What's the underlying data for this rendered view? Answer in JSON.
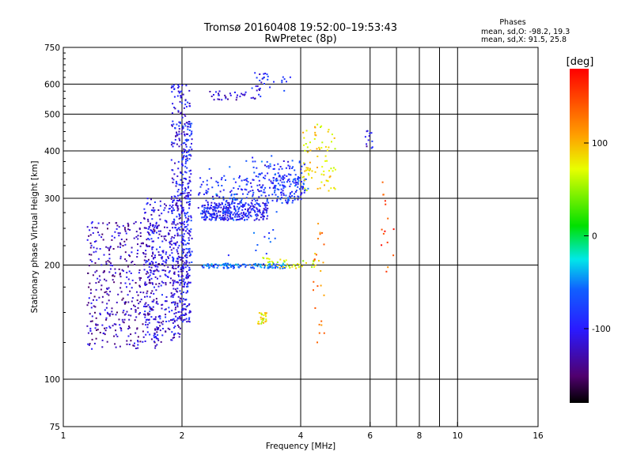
{
  "title_line1": "Tromsø 20160408 19:52:00–19:53:43",
  "title_line2": "RwPretec (8p)",
  "stats": {
    "heading": "Phases",
    "line1": "mean, sd,O: -98.2, 19.3",
    "line2": "mean, sd,X:  91.5, 25.8"
  },
  "colorbar": {
    "label": "[deg]",
    "tick_labels": [
      "100",
      "0",
      "-100"
    ],
    "tick_values": [
      100,
      0,
      -100
    ],
    "range": [
      -180,
      180
    ],
    "colormap": "rainbow (black-purple-blue-cyan-green-yellow-orange-red)"
  },
  "chart_data": {
    "type": "scatter",
    "xlabel": "Frequency [MHz]",
    "ylabel": "Stationary phase Virtual Height [km]",
    "x_scale": "log",
    "y_scale": "log",
    "xlim": [
      1,
      16
    ],
    "ylim": [
      75,
      750
    ],
    "grid": true,
    "x_ticks": [
      1,
      2,
      4,
      6,
      8,
      10,
      16
    ],
    "x_tick_labels": [
      "1",
      "2",
      "4",
      "6",
      "8",
      "10",
      "16"
    ],
    "x_grid_lines": [
      2,
      4,
      6,
      7,
      8,
      9,
      10
    ],
    "y_ticks": [
      75,
      100,
      200,
      300,
      400,
      500,
      600,
      750
    ],
    "y_tick_labels": [
      "75",
      "100",
      "200",
      "300",
      "400",
      "500",
      "600",
      "750"
    ],
    "y_grid_lines": [
      100,
      200,
      300,
      400,
      500,
      600
    ],
    "color_by": "phase [deg]",
    "series": [
      {
        "f_range": [
          1.15,
          1.75
        ],
        "h_range": [
          120,
          260
        ],
        "phase": -125,
        "count": 420
      },
      {
        "f_range": [
          1.6,
          2.02
        ],
        "h_range": [
          125,
          300
        ],
        "phase": -110,
        "count": 380
      },
      {
        "f_range": [
          1.88,
          2.1
        ],
        "h_range": [
          140,
          600
        ],
        "phase": -105,
        "count": 320
      },
      {
        "f_range": [
          2.0,
          2.12
        ],
        "h_range": [
          150,
          480
        ],
        "phase": -95,
        "count": 160
      },
      {
        "f_range": [
          2.25,
          3.3
        ],
        "h_range": [
          262,
          292
        ],
        "phase": -98,
        "count": 260
      },
      {
        "f_range": [
          2.2,
          3.2
        ],
        "h_range": [
          265,
          340
        ],
        "phase": -90,
        "count": 140
      },
      {
        "f_range": [
          3.0,
          4.1
        ],
        "h_range": [
          290,
          380
        ],
        "phase": -92,
        "count": 140
      },
      {
        "f_range": [
          3.4,
          4.2
        ],
        "h_range": [
          295,
          345
        ],
        "phase": -80,
        "count": 70
      },
      {
        "f_range": [
          4.0,
          4.9
        ],
        "h_range": [
          310,
          470
        ],
        "phase": 85,
        "count": 80
      },
      {
        "f_range": [
          2.25,
          3.7
        ],
        "h_range": [
          196,
          202
        ],
        "phase": -60,
        "count": 130
      },
      {
        "f_range": [
          3.2,
          4.5
        ],
        "h_range": [
          196,
          210
        ],
        "phase": 70,
        "count": 40
      },
      {
        "f_range": [
          2.35,
          3.2
        ],
        "h_range": [
          545,
          575
        ],
        "phase": -110,
        "count": 35
      },
      {
        "f_range": [
          3.0,
          3.8
        ],
        "h_range": [
          575,
          645
        ],
        "phase": -100,
        "count": 30
      },
      {
        "f_range": [
          3.1,
          3.3
        ],
        "h_range": [
          140,
          150
        ],
        "phase": 80,
        "count": 25
      },
      {
        "f_range": [
          5.8,
          6.1
        ],
        "h_range": [
          400,
          455
        ],
        "phase": -110,
        "count": 12
      },
      {
        "f_range": [
          6.3,
          6.9
        ],
        "h_range": [
          180,
          340
        ],
        "phase": 150,
        "count": 15
      },
      {
        "f_range": [
          4.3,
          4.6
        ],
        "h_range": [
          125,
          260
        ],
        "phase": 120,
        "count": 25
      },
      {
        "f_range": [
          2.3,
          3.8
        ],
        "h_range": [
          210,
          400
        ],
        "phase": -70,
        "count": 40
      }
    ]
  }
}
